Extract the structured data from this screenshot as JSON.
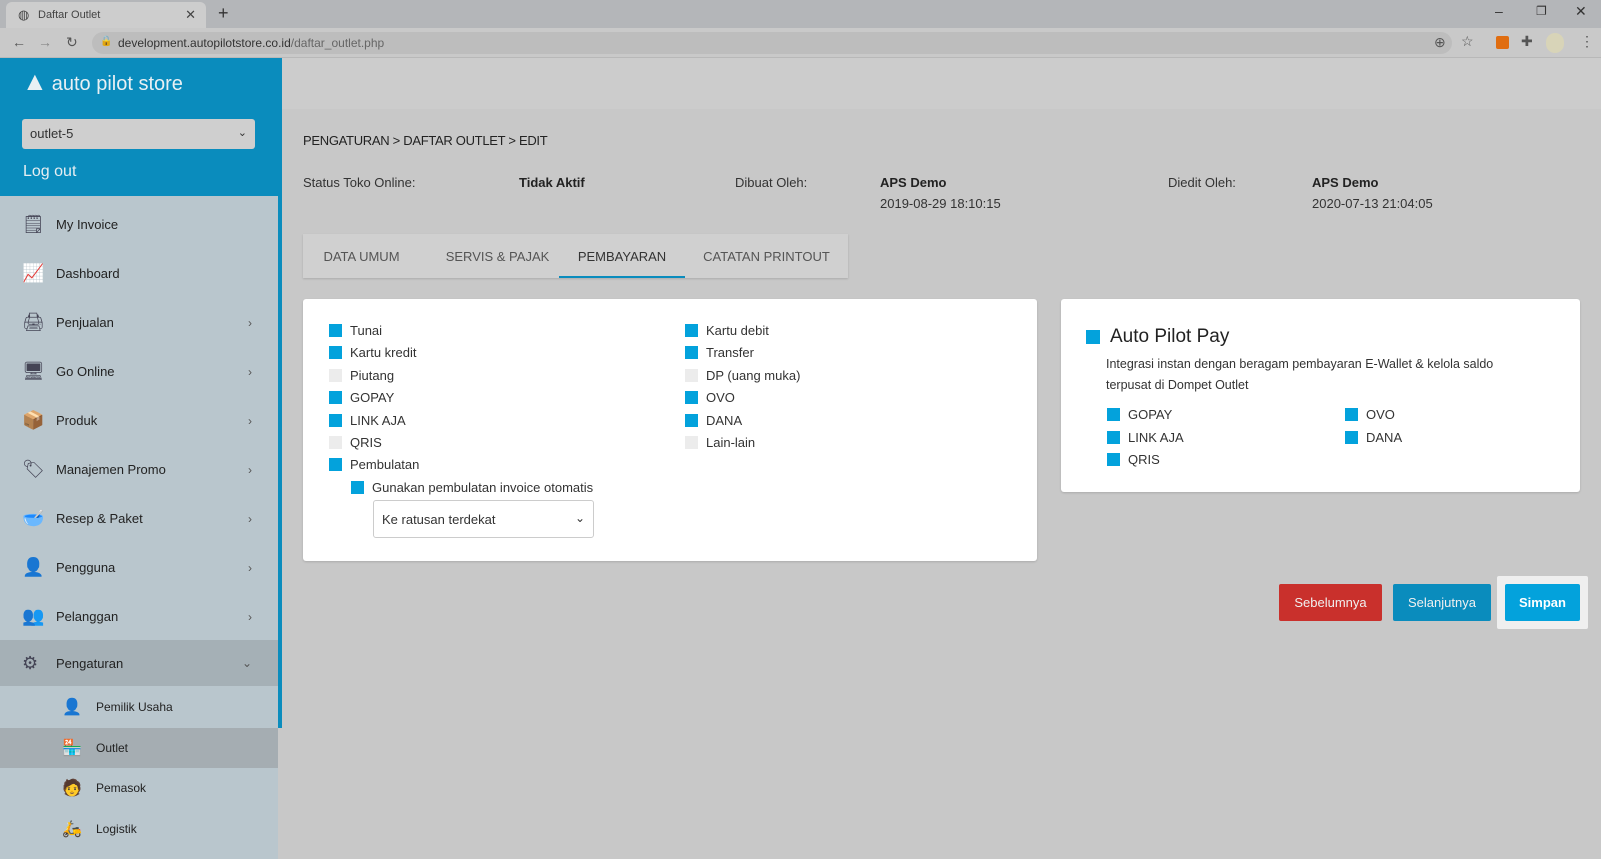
{
  "browser": {
    "tab_title": "Daftar Outlet",
    "url_host": "development.autopilotstore.co.id",
    "url_path": "/daftar_outlet.php"
  },
  "sidebar": {
    "logo": "auto pilot store",
    "outlet": "outlet-5",
    "logout": "Log out",
    "items": [
      {
        "label": "My Invoice",
        "icon": "invoice-icon"
      },
      {
        "label": "Dashboard",
        "icon": "chart-icon"
      },
      {
        "label": "Penjualan",
        "icon": "register-icon",
        "chevron": true
      },
      {
        "label": "Go Online",
        "icon": "monitor-icon",
        "chevron": true
      },
      {
        "label": "Produk",
        "icon": "box-icon",
        "chevron": true
      },
      {
        "label": "Manajemen Promo",
        "icon": "tag-icon",
        "chevron": true
      },
      {
        "label": "Resep & Paket",
        "icon": "bowl-icon",
        "chevron": true
      },
      {
        "label": "Pengguna",
        "icon": "user-icon",
        "chevron": true
      },
      {
        "label": "Pelanggan",
        "icon": "customer-icon",
        "chevron": true
      },
      {
        "label": "Pengaturan",
        "icon": "gear-icon",
        "expanded": true
      }
    ],
    "subitems": [
      {
        "label": "Pemilik Usaha",
        "icon": "owner-icon"
      },
      {
        "label": "Outlet",
        "icon": "store-icon",
        "active": true
      },
      {
        "label": "Pemasok",
        "icon": "supplier-icon"
      },
      {
        "label": "Logistik",
        "icon": "delivery-icon"
      }
    ]
  },
  "breadcrumb": "PENGATURAN > DAFTAR OUTLET  > EDIT",
  "meta": {
    "status_label": "Status Toko Online:",
    "status_value": "Tidak Aktif",
    "created_label": "Dibuat Oleh:",
    "created_by": "APS Demo",
    "created_at": "2019-08-29 18:10:15",
    "edited_label": "Diedit Oleh:",
    "edited_by": "APS Demo",
    "edited_at": "2020-07-13 21:04:05"
  },
  "tabs": [
    {
      "label": "DATA UMUM"
    },
    {
      "label": "SERVIS & PAJAK"
    },
    {
      "label": "PEMBAYARAN",
      "active": true
    },
    {
      "label": "CATATAN PRINTOUT"
    }
  ],
  "payments": {
    "col1": [
      {
        "label": "Tunai",
        "checked": true
      },
      {
        "label": "Kartu kredit",
        "checked": true
      },
      {
        "label": "Piutang",
        "checked": false
      },
      {
        "label": "GOPAY",
        "checked": true
      },
      {
        "label": "LINK AJA",
        "checked": true
      },
      {
        "label": "QRIS",
        "checked": false
      },
      {
        "label": "Pembulatan",
        "checked": true
      }
    ],
    "col2": [
      {
        "label": "Kartu debit",
        "checked": true
      },
      {
        "label": "Transfer",
        "checked": true
      },
      {
        "label": "DP (uang muka)",
        "checked": false
      },
      {
        "label": "OVO",
        "checked": true
      },
      {
        "label": "DANA",
        "checked": true
      },
      {
        "label": "Lain-lain",
        "checked": false
      }
    ],
    "auto_rounding": {
      "label": "Gunakan pembulatan invoice otomatis",
      "checked": true
    },
    "rounding_select": "Ke ratusan terdekat"
  },
  "autopilot_pay": {
    "title": "Auto Pilot Pay",
    "checked": true,
    "description": "Integrasi instan dengan beragam pembayaran E-Wallet & kelola saldo terpusat di Dompet Outlet",
    "col1": [
      {
        "label": "GOPAY",
        "checked": true
      },
      {
        "label": "LINK AJA",
        "checked": true
      },
      {
        "label": "QRIS",
        "checked": true
      }
    ],
    "col2": [
      {
        "label": "OVO",
        "checked": true
      },
      {
        "label": "DANA",
        "checked": true
      }
    ]
  },
  "buttons": {
    "prev": "Sebelumnya",
    "next": "Selanjutnya",
    "save": "Simpan"
  },
  "colors": {
    "accent": "#03a2dc",
    "brand": "#0a8cbd",
    "danger": "#c9302c"
  }
}
